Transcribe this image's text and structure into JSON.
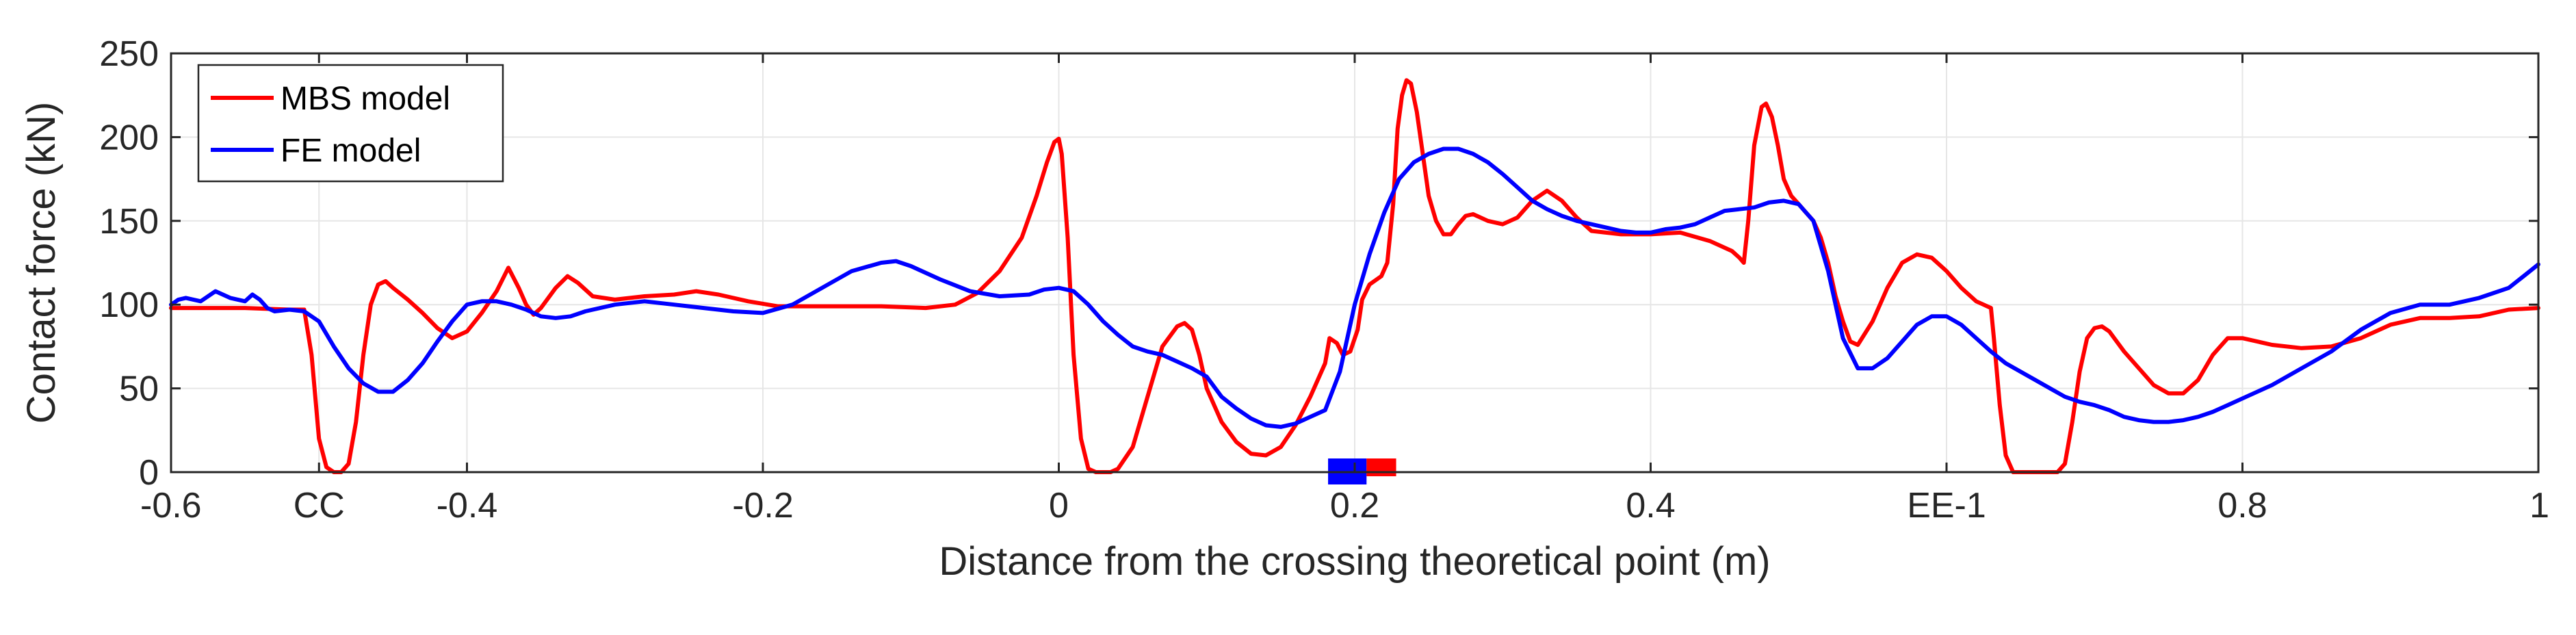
{
  "chart_data": {
    "type": "line",
    "xlabel": "Distance from the crossing theoretical point (m)",
    "ylabel": "Contact force (kN)",
    "xlim": [
      -0.6,
      1.0
    ],
    "ylim": [
      0,
      250
    ],
    "grid": true,
    "legend_position": "top-left",
    "x_ticks": [
      {
        "value": -0.6,
        "label": "-0.6"
      },
      {
        "value": -0.5,
        "label": "CC"
      },
      {
        "value": -0.4,
        "label": "-0.4"
      },
      {
        "value": -0.2,
        "label": "-0.2"
      },
      {
        "value": 0.0,
        "label": "0"
      },
      {
        "value": 0.2,
        "label": "0.2"
      },
      {
        "value": 0.4,
        "label": "0.4"
      },
      {
        "value": 0.6,
        "label": "EE-1"
      },
      {
        "value": 0.8,
        "label": "0.8"
      },
      {
        "value": 1.0,
        "label": "1"
      }
    ],
    "y_ticks": [
      0,
      50,
      100,
      150,
      200,
      250
    ],
    "series": [
      {
        "name": "MBS model",
        "color": "#ff0000",
        "points": [
          [
            -0.6,
            98
          ],
          [
            -0.55,
            98
          ],
          [
            -0.52,
            97
          ],
          [
            -0.51,
            97
          ],
          [
            -0.505,
            70
          ],
          [
            -0.5,
            20
          ],
          [
            -0.495,
            3
          ],
          [
            -0.49,
            0
          ],
          [
            -0.485,
            0
          ],
          [
            -0.48,
            5
          ],
          [
            -0.475,
            30
          ],
          [
            -0.47,
            70
          ],
          [
            -0.465,
            100
          ],
          [
            -0.46,
            112
          ],
          [
            -0.455,
            114
          ],
          [
            -0.45,
            110
          ],
          [
            -0.44,
            103
          ],
          [
            -0.43,
            95
          ],
          [
            -0.42,
            86
          ],
          [
            -0.41,
            80
          ],
          [
            -0.4,
            84
          ],
          [
            -0.39,
            95
          ],
          [
            -0.38,
            108
          ],
          [
            -0.372,
            122
          ],
          [
            -0.365,
            110
          ],
          [
            -0.36,
            100
          ],
          [
            -0.355,
            94
          ],
          [
            -0.35,
            98
          ],
          [
            -0.34,
            110
          ],
          [
            -0.332,
            117
          ],
          [
            -0.325,
            113
          ],
          [
            -0.315,
            105
          ],
          [
            -0.3,
            103
          ],
          [
            -0.28,
            105
          ],
          [
            -0.26,
            106
          ],
          [
            -0.245,
            108
          ],
          [
            -0.23,
            106
          ],
          [
            -0.21,
            102
          ],
          [
            -0.19,
            99
          ],
          [
            -0.16,
            99
          ],
          [
            -0.12,
            99
          ],
          [
            -0.09,
            98
          ],
          [
            -0.07,
            100
          ],
          [
            -0.055,
            107
          ],
          [
            -0.04,
            120
          ],
          [
            -0.025,
            140
          ],
          [
            -0.015,
            165
          ],
          [
            -0.008,
            185
          ],
          [
            -0.003,
            197
          ],
          [
            0.0,
            199
          ],
          [
            0.002,
            190
          ],
          [
            0.006,
            140
          ],
          [
            0.01,
            70
          ],
          [
            0.015,
            20
          ],
          [
            0.02,
            2
          ],
          [
            0.025,
            0
          ],
          [
            0.035,
            0
          ],
          [
            0.04,
            2
          ],
          [
            0.05,
            15
          ],
          [
            0.06,
            45
          ],
          [
            0.07,
            75
          ],
          [
            0.08,
            87
          ],
          [
            0.085,
            89
          ],
          [
            0.09,
            85
          ],
          [
            0.095,
            70
          ],
          [
            0.1,
            50
          ],
          [
            0.11,
            30
          ],
          [
            0.12,
            18
          ],
          [
            0.13,
            11
          ],
          [
            0.14,
            10
          ],
          [
            0.15,
            15
          ],
          [
            0.16,
            28
          ],
          [
            0.17,
            45
          ],
          [
            0.18,
            65
          ],
          [
            0.183,
            80
          ],
          [
            0.188,
            77
          ],
          [
            0.192,
            70
          ],
          [
            0.197,
            72
          ],
          [
            0.202,
            85
          ],
          [
            0.205,
            103
          ],
          [
            0.21,
            112
          ],
          [
            0.218,
            117
          ],
          [
            0.222,
            125
          ],
          [
            0.226,
            160
          ],
          [
            0.229,
            205
          ],
          [
            0.232,
            225
          ],
          [
            0.235,
            234
          ],
          [
            0.238,
            232
          ],
          [
            0.242,
            215
          ],
          [
            0.246,
            190
          ],
          [
            0.25,
            165
          ],
          [
            0.255,
            150
          ],
          [
            0.26,
            142
          ],
          [
            0.265,
            142
          ],
          [
            0.27,
            148
          ],
          [
            0.275,
            153
          ],
          [
            0.28,
            154
          ],
          [
            0.29,
            150
          ],
          [
            0.3,
            148
          ],
          [
            0.31,
            152
          ],
          [
            0.32,
            162
          ],
          [
            0.33,
            168
          ],
          [
            0.34,
            162
          ],
          [
            0.35,
            152
          ],
          [
            0.36,
            144
          ],
          [
            0.38,
            142
          ],
          [
            0.4,
            142
          ],
          [
            0.42,
            143
          ],
          [
            0.44,
            138
          ],
          [
            0.455,
            132
          ],
          [
            0.46,
            128
          ],
          [
            0.463,
            125
          ],
          [
            0.466,
            150
          ],
          [
            0.47,
            195
          ],
          [
            0.475,
            218
          ],
          [
            0.478,
            220
          ],
          [
            0.482,
            212
          ],
          [
            0.486,
            195
          ],
          [
            0.49,
            175
          ],
          [
            0.495,
            165
          ],
          [
            0.5,
            160
          ],
          [
            0.505,
            155
          ],
          [
            0.51,
            150
          ],
          [
            0.515,
            140
          ],
          [
            0.52,
            125
          ],
          [
            0.525,
            105
          ],
          [
            0.53,
            90
          ],
          [
            0.535,
            78
          ],
          [
            0.54,
            76
          ],
          [
            0.55,
            90
          ],
          [
            0.56,
            110
          ],
          [
            0.57,
            125
          ],
          [
            0.58,
            130
          ],
          [
            0.59,
            128
          ],
          [
            0.6,
            120
          ],
          [
            0.61,
            110
          ],
          [
            0.62,
            102
          ],
          [
            0.625,
            100
          ],
          [
            0.63,
            98
          ],
          [
            0.632,
            80
          ],
          [
            0.636,
            40
          ],
          [
            0.64,
            10
          ],
          [
            0.645,
            0
          ],
          [
            0.655,
            0
          ],
          [
            0.66,
            0
          ],
          [
            0.675,
            0
          ],
          [
            0.68,
            5
          ],
          [
            0.685,
            30
          ],
          [
            0.69,
            60
          ],
          [
            0.695,
            80
          ],
          [
            0.7,
            86
          ],
          [
            0.705,
            87
          ],
          [
            0.71,
            84
          ],
          [
            0.72,
            72
          ],
          [
            0.73,
            62
          ],
          [
            0.74,
            52
          ],
          [
            0.75,
            47
          ],
          [
            0.76,
            47
          ],
          [
            0.77,
            55
          ],
          [
            0.78,
            70
          ],
          [
            0.79,
            80
          ],
          [
            0.8,
            80
          ],
          [
            0.82,
            76
          ],
          [
            0.84,
            74
          ],
          [
            0.86,
            75
          ],
          [
            0.88,
            80
          ],
          [
            0.9,
            88
          ],
          [
            0.92,
            92
          ],
          [
            0.94,
            92
          ],
          [
            0.96,
            93
          ],
          [
            0.98,
            97
          ],
          [
            1.0,
            98
          ]
        ]
      },
      {
        "name": "FE model",
        "color": "#0000ff",
        "points": [
          [
            -0.6,
            100
          ],
          [
            -0.595,
            103
          ],
          [
            -0.59,
            104
          ],
          [
            -0.58,
            102
          ],
          [
            -0.57,
            108
          ],
          [
            -0.565,
            106
          ],
          [
            -0.56,
            104
          ],
          [
            -0.55,
            102
          ],
          [
            -0.545,
            106
          ],
          [
            -0.54,
            103
          ],
          [
            -0.535,
            98
          ],
          [
            -0.53,
            96
          ],
          [
            -0.52,
            97
          ],
          [
            -0.51,
            96
          ],
          [
            -0.5,
            90
          ],
          [
            -0.49,
            75
          ],
          [
            -0.48,
            62
          ],
          [
            -0.47,
            53
          ],
          [
            -0.46,
            48
          ],
          [
            -0.45,
            48
          ],
          [
            -0.44,
            55
          ],
          [
            -0.43,
            65
          ],
          [
            -0.42,
            78
          ],
          [
            -0.41,
            90
          ],
          [
            -0.4,
            100
          ],
          [
            -0.39,
            102
          ],
          [
            -0.38,
            102
          ],
          [
            -0.37,
            100
          ],
          [
            -0.36,
            97
          ],
          [
            -0.35,
            93
          ],
          [
            -0.34,
            92
          ],
          [
            -0.33,
            93
          ],
          [
            -0.32,
            96
          ],
          [
            -0.3,
            100
          ],
          [
            -0.28,
            102
          ],
          [
            -0.26,
            100
          ],
          [
            -0.24,
            98
          ],
          [
            -0.22,
            96
          ],
          [
            -0.2,
            95
          ],
          [
            -0.18,
            100
          ],
          [
            -0.16,
            110
          ],
          [
            -0.14,
            120
          ],
          [
            -0.12,
            125
          ],
          [
            -0.11,
            126
          ],
          [
            -0.1,
            123
          ],
          [
            -0.08,
            115
          ],
          [
            -0.06,
            108
          ],
          [
            -0.04,
            105
          ],
          [
            -0.02,
            106
          ],
          [
            -0.01,
            109
          ],
          [
            0.0,
            110
          ],
          [
            0.01,
            108
          ],
          [
            0.02,
            100
          ],
          [
            0.03,
            90
          ],
          [
            0.04,
            82
          ],
          [
            0.05,
            75
          ],
          [
            0.06,
            72
          ],
          [
            0.07,
            70
          ],
          [
            0.08,
            66
          ],
          [
            0.09,
            62
          ],
          [
            0.1,
            57
          ],
          [
            0.11,
            45
          ],
          [
            0.12,
            38
          ],
          [
            0.13,
            32
          ],
          [
            0.14,
            28
          ],
          [
            0.15,
            27
          ],
          [
            0.16,
            29
          ],
          [
            0.17,
            33
          ],
          [
            0.18,
            37
          ],
          [
            0.19,
            60
          ],
          [
            0.2,
            100
          ],
          [
            0.21,
            130
          ],
          [
            0.22,
            155
          ],
          [
            0.23,
            175
          ],
          [
            0.24,
            185
          ],
          [
            0.25,
            190
          ],
          [
            0.26,
            193
          ],
          [
            0.27,
            193
          ],
          [
            0.28,
            190
          ],
          [
            0.29,
            185
          ],
          [
            0.3,
            178
          ],
          [
            0.31,
            170
          ],
          [
            0.32,
            162
          ],
          [
            0.33,
            157
          ],
          [
            0.34,
            153
          ],
          [
            0.35,
            150
          ],
          [
            0.36,
            148
          ],
          [
            0.37,
            146
          ],
          [
            0.38,
            144
          ],
          [
            0.39,
            143
          ],
          [
            0.4,
            143
          ],
          [
            0.41,
            145
          ],
          [
            0.42,
            146
          ],
          [
            0.43,
            148
          ],
          [
            0.44,
            152
          ],
          [
            0.45,
            156
          ],
          [
            0.46,
            157
          ],
          [
            0.47,
            158
          ],
          [
            0.48,
            161
          ],
          [
            0.49,
            162
          ],
          [
            0.5,
            160
          ],
          [
            0.51,
            150
          ],
          [
            0.52,
            120
          ],
          [
            0.53,
            80
          ],
          [
            0.54,
            62
          ],
          [
            0.55,
            62
          ],
          [
            0.56,
            68
          ],
          [
            0.57,
            78
          ],
          [
            0.58,
            88
          ],
          [
            0.59,
            93
          ],
          [
            0.6,
            93
          ],
          [
            0.61,
            88
          ],
          [
            0.62,
            80
          ],
          [
            0.63,
            72
          ],
          [
            0.64,
            65
          ],
          [
            0.65,
            60
          ],
          [
            0.66,
            55
          ],
          [
            0.67,
            50
          ],
          [
            0.68,
            45
          ],
          [
            0.69,
            42
          ],
          [
            0.7,
            40
          ],
          [
            0.71,
            37
          ],
          [
            0.72,
            33
          ],
          [
            0.73,
            31
          ],
          [
            0.74,
            30
          ],
          [
            0.75,
            30
          ],
          [
            0.76,
            31
          ],
          [
            0.77,
            33
          ],
          [
            0.78,
            36
          ],
          [
            0.79,
            40
          ],
          [
            0.8,
            44
          ],
          [
            0.82,
            52
          ],
          [
            0.84,
            62
          ],
          [
            0.86,
            72
          ],
          [
            0.88,
            85
          ],
          [
            0.9,
            95
          ],
          [
            0.92,
            100
          ],
          [
            0.94,
            100
          ],
          [
            0.96,
            104
          ],
          [
            0.98,
            110
          ],
          [
            0.99,
            117
          ],
          [
            1.0,
            124
          ]
        ]
      }
    ],
    "markers": [
      {
        "type": "bar",
        "x_start": 0.182,
        "x_end": 0.208,
        "color": "#0000ff"
      },
      {
        "type": "bar",
        "x_start": 0.208,
        "x_end": 0.228,
        "color": "#ff0000"
      }
    ]
  }
}
